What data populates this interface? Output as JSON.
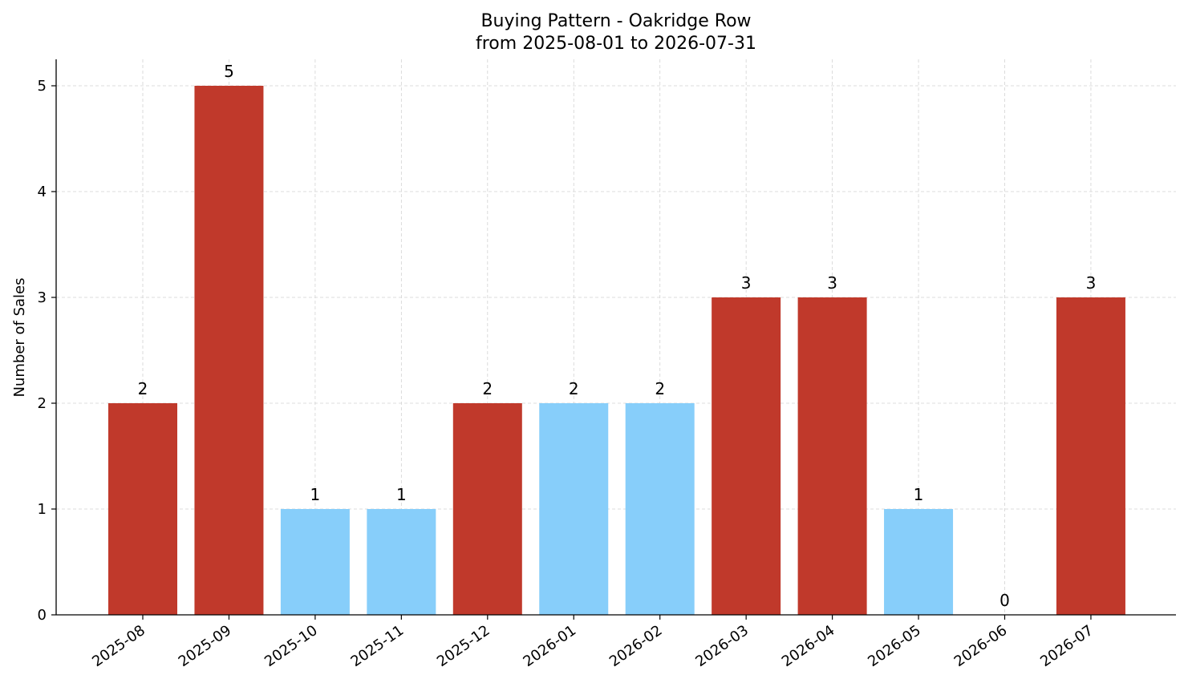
{
  "chart_data": {
    "type": "bar",
    "title": "Buying Pattern - Oakridge Row",
    "subtitle": "from 2025-08-01 to 2026-07-31",
    "xlabel": "",
    "ylabel": "Number of Sales",
    "categories": [
      "2025-08",
      "2025-09",
      "2025-10",
      "2025-11",
      "2025-12",
      "2026-01",
      "2026-02",
      "2026-03",
      "2026-04",
      "2026-05",
      "2026-06",
      "2026-07"
    ],
    "values": [
      2,
      5,
      1,
      1,
      2,
      2,
      2,
      3,
      3,
      1,
      0,
      3
    ],
    "data_labels": [
      "2",
      "5",
      "1",
      "1",
      "2",
      "2",
      "2",
      "3",
      "3",
      "1",
      "0",
      "3"
    ],
    "bar_colors": [
      "#c0392b",
      "#c0392b",
      "#87cefa",
      "#87cefa",
      "#c0392b",
      "#87cefa",
      "#87cefa",
      "#c0392b",
      "#c0392b",
      "#87cefa",
      "#87cefa",
      "#c0392b"
    ],
    "yticks": [
      0,
      1,
      2,
      3,
      4,
      5
    ],
    "ytick_labels": [
      "0",
      "1",
      "2",
      "3",
      "4",
      "5"
    ],
    "ylim": [
      0,
      5.25
    ],
    "grid": true,
    "grid_style": "dashed",
    "grid_color": "#d3d3d3",
    "axis_color": "#000000",
    "high_color": "#c0392b",
    "low_color": "#87cefa"
  }
}
